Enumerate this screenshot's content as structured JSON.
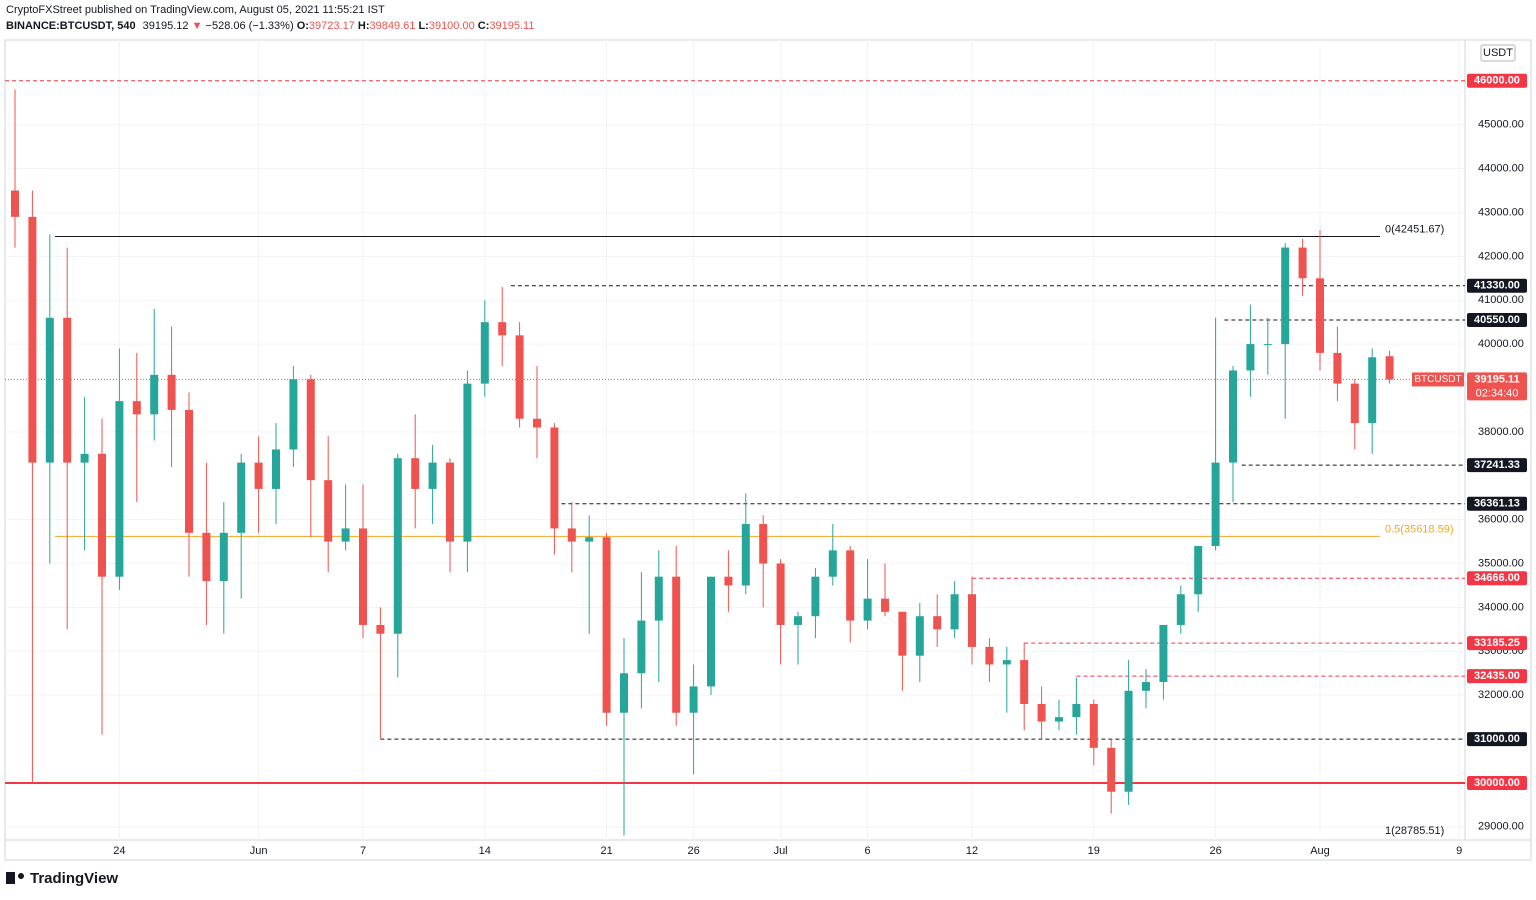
{
  "header": {
    "publisher": "CryptoFXStreet published on TradingView.com, August 05, 2021 11:55:21 IST",
    "symbol": "BINANCE:BTCUSDT, 540",
    "last": "39195.12",
    "arrow": "▼",
    "change": "−528.06 (−1.33%)",
    "o_label": "O:",
    "o": "39723.17",
    "h_label": "H:",
    "h": "39849.61",
    "l_label": "L:",
    "l": "39100.00",
    "c_label": "C:",
    "c": "39195.11"
  },
  "footer": {
    "brand": "TradingView"
  },
  "chart_data": {
    "type": "candlestick",
    "unit": "USDT",
    "up_color": "#26a69a",
    "down_color": "#ef5350",
    "categories": [
      null,
      null,
      null,
      null,
      null,
      null,
      "24",
      null,
      null,
      null,
      null,
      null,
      null,
      null,
      "Jun",
      null,
      null,
      null,
      null,
      null,
      "7",
      null,
      null,
      null,
      null,
      null,
      null,
      "14",
      null,
      null,
      null,
      null,
      null,
      null,
      "21",
      null,
      null,
      null,
      null,
      "26",
      null,
      null,
      null,
      null,
      "Jul",
      null,
      null,
      null,
      null,
      "6",
      null,
      null,
      null,
      null,
      null,
      "12",
      null,
      null,
      null,
      null,
      null,
      null,
      "19",
      null,
      null,
      null,
      null,
      null,
      null,
      "26",
      null,
      null,
      null,
      null,
      null,
      "Aug",
      null,
      null,
      null,
      null,
      null,
      null,
      null,
      "9"
    ],
    "open": [
      43500,
      42900,
      37300,
      40600,
      37300,
      37500,
      34700,
      38700,
      38400,
      39300,
      38500,
      35700,
      34600,
      35700,
      37300,
      36700,
      37600,
      39200,
      36900,
      35500,
      35800,
      33600,
      33400,
      37400,
      36700,
      37300,
      35500,
      39100,
      40500,
      40200,
      38300,
      38100,
      35800,
      35500,
      35600,
      31600,
      32500,
      33700,
      34700,
      31600,
      32200,
      34700,
      34500,
      35900,
      35000,
      33600,
      33800,
      34700,
      35300,
      33700,
      34200,
      33900,
      32900,
      33800,
      33500,
      34300,
      33100,
      32700,
      32800,
      31800,
      31400,
      31500,
      31800,
      30800,
      29800,
      32100,
      32300,
      33600,
      34300,
      35400,
      37300,
      39400,
      40000,
      40000,
      42200,
      41500,
      39800,
      39100,
      38200,
      39723.17,
      null,
      null,
      null,
      null
    ],
    "high": [
      45800,
      43500,
      42500,
      42200,
      38800,
      38300,
      39900,
      39800,
      40800,
      40400,
      38900,
      37300,
      36400,
      37500,
      37900,
      38200,
      39500,
      39300,
      37900,
      36800,
      36800,
      34000,
      37500,
      38400,
      37700,
      37400,
      39400,
      41000,
      41300,
      40500,
      39500,
      38200,
      36400,
      36100,
      35700,
      33300,
      34800,
      35300,
      35400,
      32700,
      34700,
      35300,
      36600,
      36100,
      35100,
      33900,
      34900,
      35900,
      35400,
      35100,
      35000,
      33900,
      34100,
      34300,
      34600,
      34700,
      33300,
      33100,
      33200,
      32200,
      31900,
      32400,
      31900,
      31000,
      32800,
      32600,
      33600,
      34500,
      35400,
      40600,
      39500,
      40900,
      40600,
      42300,
      42400,
      42600,
      40400,
      39200,
      39900,
      39849.61,
      null,
      null,
      null,
      null
    ],
    "low": [
      42200,
      30000,
      35000,
      33500,
      35300,
      31100,
      34400,
      36400,
      37800,
      37200,
      34700,
      33600,
      33400,
      34200,
      35700,
      35900,
      37200,
      35600,
      34800,
      35300,
      33300,
      31000,
      32400,
      35800,
      35900,
      34800,
      34800,
      38800,
      39500,
      38100,
      37400,
      35200,
      34800,
      33400,
      31300,
      28800,
      31700,
      32300,
      31300,
      30200,
      32000,
      33900,
      34300,
      34000,
      32700,
      32700,
      33300,
      34500,
      33200,
      33500,
      33800,
      32100,
      32300,
      33100,
      33300,
      32700,
      32300,
      31600,
      31200,
      31000,
      31200,
      31100,
      30400,
      29300,
      29500,
      31700,
      31900,
      33400,
      33900,
      35300,
      36400,
      38800,
      39300,
      38300,
      41100,
      39400,
      38700,
      37600,
      37500,
      39100,
      null,
      null,
      null,
      null
    ],
    "close": [
      42900,
      37300,
      40600,
      37300,
      37500,
      34700,
      38700,
      38400,
      39300,
      38500,
      35700,
      34600,
      35700,
      37300,
      36700,
      37600,
      39200,
      36900,
      35500,
      35800,
      33600,
      33400,
      37400,
      36700,
      37300,
      35500,
      39100,
      40500,
      40200,
      38300,
      38100,
      35800,
      35500,
      35600,
      31600,
      32500,
      33700,
      34700,
      31600,
      32200,
      34700,
      34500,
      35900,
      35000,
      33600,
      33800,
      34700,
      35300,
      33700,
      34200,
      33900,
      32900,
      33800,
      33500,
      34300,
      33100,
      32700,
      32800,
      31800,
      31400,
      31500,
      31800,
      30800,
      29800,
      32100,
      32300,
      33600,
      34300,
      35400,
      37300,
      39400,
      40000,
      40000,
      42200,
      41500,
      39800,
      39100,
      38200,
      39700,
      39195.11,
      null,
      null,
      null,
      null
    ],
    "ylim": [
      28700,
      46930
    ],
    "yticks": [
      {
        "value": 29000,
        "label": "29000.00"
      },
      {
        "value": 32000,
        "label": "32000.00"
      },
      {
        "value": 33000,
        "label": "33000.00"
      },
      {
        "value": 34000,
        "label": "34000.00"
      },
      {
        "value": 35000,
        "label": "35000.00"
      },
      {
        "value": 36000,
        "label": "36000.00"
      },
      {
        "value": 38000,
        "label": "38000.00"
      },
      {
        "value": 40000,
        "label": "40000.00"
      },
      {
        "value": 41000,
        "label": "41000.00"
      },
      {
        "value": 42000,
        "label": "42000.00"
      },
      {
        "value": 43000,
        "label": "43000.00"
      },
      {
        "value": 44000,
        "label": "44000.00"
      },
      {
        "value": 45000,
        "label": "45000.00"
      }
    ],
    "grid": true,
    "levels": [
      {
        "value": 46000,
        "label": "46000.00",
        "color": "#f23645"
      },
      {
        "value": 41330,
        "label": "41330.00",
        "color": "#131722"
      },
      {
        "value": 40550,
        "label": "40550.00",
        "color": "#131722"
      },
      {
        "value": 37241.33,
        "label": "37241.33",
        "color": "#131722"
      },
      {
        "value": 36361.13,
        "label": "36361.13",
        "color": "#131722"
      },
      {
        "value": 34666,
        "label": "34666.00",
        "color": "#f23645"
      },
      {
        "value": 33185.25,
        "label": "33185.25",
        "color": "#f23645"
      },
      {
        "value": 32435,
        "label": "32435.00",
        "color": "#f23645"
      },
      {
        "value": 31000,
        "label": "31000.00",
        "color": "#131722"
      },
      {
        "value": 30000,
        "label": "30000.00",
        "color": "#f23645"
      }
    ],
    "fib": [
      {
        "value": 42451.67,
        "label": "0(42451.67)",
        "color": "#131722"
      },
      {
        "value": 35618.59,
        "label": "0.5(35618.59)",
        "color": "#f5a623"
      },
      {
        "value": 28785.51,
        "label": "1(28785.51)",
        "color": "#131722"
      }
    ],
    "price_label": {
      "name": "BTCUSDT",
      "value": 39195.11,
      "label": "39195.11",
      "countdown": "02:34:40",
      "color": "#ef5350"
    }
  }
}
